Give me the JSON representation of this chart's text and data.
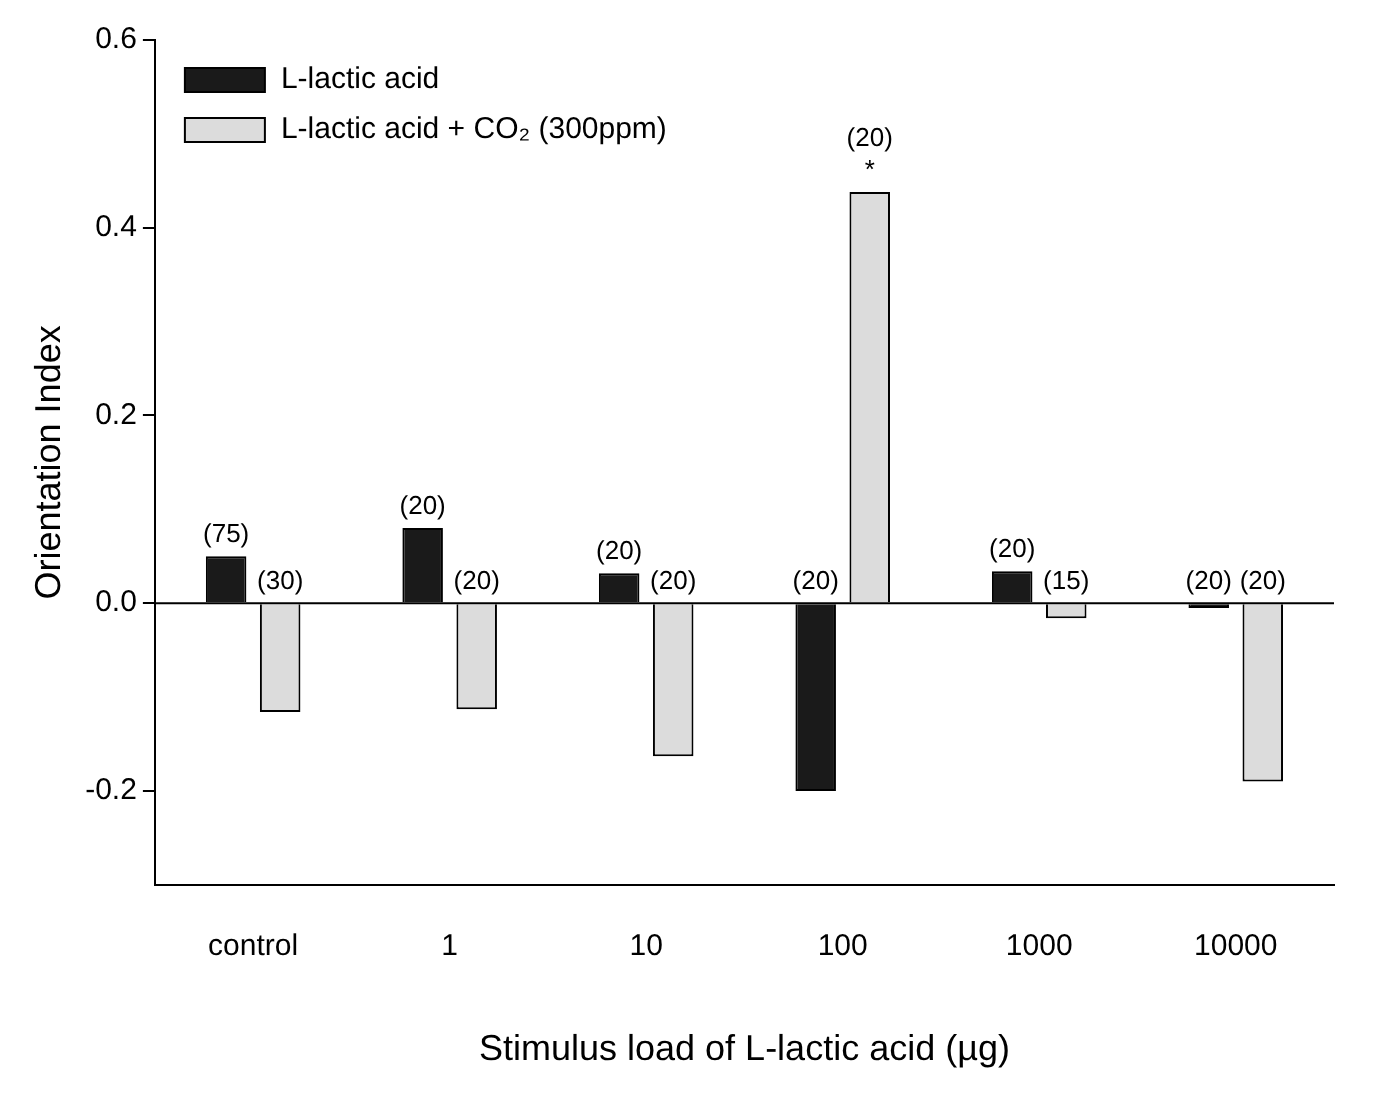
{
  "chart_data": {
    "type": "bar",
    "xlabel": "Stimulus load of L-lactic acid (µg)",
    "ylabel": "Orientation Index",
    "categories": [
      "control",
      "1",
      "10",
      "100",
      "1000",
      "10000"
    ],
    "series": [
      {
        "name": "L-lactic acid",
        "color": "#1a1a1a",
        "values": [
          0.05,
          0.08,
          0.032,
          -0.2,
          0.034,
          -0.005
        ]
      },
      {
        "name": "L-lactic acid + CO₂ (300ppm)",
        "color": "#dcdcdc",
        "values": [
          -0.116,
          -0.113,
          -0.163,
          0.438,
          -0.016,
          -0.19
        ]
      }
    ],
    "annotations": [
      {
        "text": "(75)",
        "x": "control",
        "y": 0.05
      },
      {
        "text": "(30)",
        "x": "control",
        "y": 0
      },
      {
        "text": "(20)",
        "x": "1",
        "y": 0.08
      },
      {
        "text": "(20)",
        "x": "1",
        "y": 0
      },
      {
        "text": "(20)",
        "x": "10",
        "y": 0.032
      },
      {
        "text": "(20)",
        "x": "10",
        "y": 0
      },
      {
        "text": "(20)",
        "x": "100",
        "y": 0
      },
      {
        "text": "*",
        "x": "100",
        "y": 0.438
      },
      {
        "text": "(20)",
        "x": "100",
        "y": 0.438
      },
      {
        "text": "(20)",
        "x": "1000",
        "y": 0.034
      },
      {
        "text": "(15)",
        "x": "1000",
        "y": 0
      },
      {
        "text": "(20)",
        "x": "10000",
        "y": 0
      },
      {
        "text": "(20)",
        "x": "10000",
        "y": 0
      }
    ],
    "ref_lines": [
      {
        "axis": "y",
        "value": 0,
        "color": "#000000"
      }
    ],
    "ylim": [
      -0.3,
      0.6
    ],
    "yticks": [
      -0.2,
      {
        "value": 0,
        "label": "0.0"
      },
      0.2,
      0.4,
      0.6
    ],
    "legend": "top left",
    "grid": false
  }
}
